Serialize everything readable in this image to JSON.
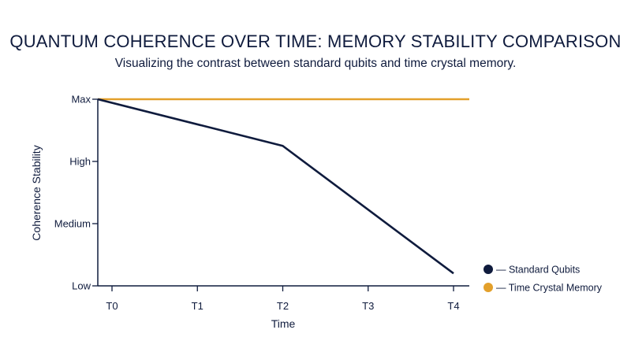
{
  "chart_data": {
    "type": "line",
    "title": "QUANTUM COHERENCE OVER TIME: MEMORY STABILITY COMPARISON",
    "subtitle": "Visualizing the contrast between standard qubits and time crystal memory.",
    "xlabel": "Time",
    "ylabel": "Coherence Stability",
    "categories": [
      "T0",
      "T1",
      "T2",
      "T3",
      "T4"
    ],
    "y_ticks": [
      "Low",
      "Medium",
      "High",
      "Max"
    ],
    "ylim": [
      0,
      3
    ],
    "grid": false,
    "legend_position": "right",
    "series": [
      {
        "name": "Standard Qubits",
        "color": "#0f1b3d",
        "x": [
          0,
          2,
          4
        ],
        "values": [
          3.0,
          2.25,
          0.2
        ]
      },
      {
        "name": "Time Crystal Memory",
        "color": "#e3a02b",
        "x": [
          0,
          4
        ],
        "values": [
          3.0,
          3.0
        ]
      }
    ],
    "legend": [
      {
        "label": "— Standard Qubits",
        "color": "#0f1b3d"
      },
      {
        "label": "— Time Crystal Memory",
        "color": "#e3a02b"
      }
    ]
  }
}
